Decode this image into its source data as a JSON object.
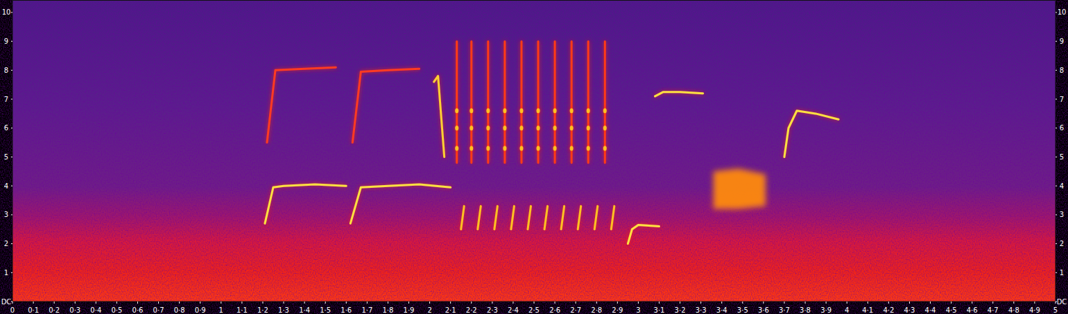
{
  "chart_data": {
    "type": "spectrogram",
    "xlim": [
      0,
      5
    ],
    "ylim": [
      0,
      10.43
    ],
    "grid": false,
    "xticks": [
      0,
      {
        "value": 0.1,
        "label": "0·1"
      },
      {
        "value": 0.2,
        "label": "0·2"
      },
      {
        "value": 0.3,
        "label": "0·3"
      },
      {
        "value": 0.4,
        "label": "0·4"
      },
      {
        "value": 0.5,
        "label": "0·5"
      },
      {
        "value": 0.6,
        "label": "0·6"
      },
      {
        "value": 0.7,
        "label": "0·7"
      },
      {
        "value": 0.8,
        "label": "0·8"
      },
      {
        "value": 0.9,
        "label": "0·9"
      },
      1,
      {
        "value": 1.1,
        "label": "1·1"
      },
      {
        "value": 1.2,
        "label": "1·2"
      },
      {
        "value": 1.3,
        "label": "1·3"
      },
      {
        "value": 1.4,
        "label": "1·4"
      },
      {
        "value": 1.5,
        "label": "1·5"
      },
      {
        "value": 1.6,
        "label": "1·6"
      },
      {
        "value": 1.7,
        "label": "1·7"
      },
      {
        "value": 1.8,
        "label": "1·8"
      },
      {
        "value": 1.9,
        "label": "1·9"
      },
      2,
      {
        "value": 2.1,
        "label": "2·1"
      },
      {
        "value": 2.2,
        "label": "2·2"
      },
      {
        "value": 2.3,
        "label": "2·3"
      },
      {
        "value": 2.4,
        "label": "2·4"
      },
      {
        "value": 2.5,
        "label": "2·5"
      },
      {
        "value": 2.6,
        "label": "2·6"
      },
      {
        "value": 2.7,
        "label": "2·7"
      },
      {
        "value": 2.8,
        "label": "2·8"
      },
      {
        "value": 2.9,
        "label": "2·9"
      },
      3,
      {
        "value": 3.1,
        "label": "3·1"
      },
      {
        "value": 3.2,
        "label": "3·2"
      },
      {
        "value": 3.3,
        "label": "3·3"
      },
      {
        "value": 3.4,
        "label": "3·4"
      },
      {
        "value": 3.5,
        "label": "3·5"
      },
      {
        "value": 3.6,
        "label": "3·6"
      },
      {
        "value": 3.7,
        "label": "3·7"
      },
      {
        "value": 3.8,
        "label": "3·8"
      },
      {
        "value": 3.9,
        "label": "3·9"
      },
      4,
      {
        "value": 4.1,
        "label": "4·1"
      },
      {
        "value": 4.2,
        "label": "4·2"
      },
      {
        "value": 4.3,
        "label": "4·3"
      },
      {
        "value": 4.4,
        "label": "4·4"
      },
      {
        "value": 4.5,
        "label": "4·5"
      },
      {
        "value": 4.6,
        "label": "4·6"
      },
      {
        "value": 4.7,
        "label": "4·7"
      },
      {
        "value": 4.8,
        "label": "4·8"
      },
      {
        "value": 4.9,
        "label": "4·9"
      },
      5
    ],
    "yticks": [
      {
        "value": 0,
        "label": "DC"
      },
      1,
      2,
      3,
      4,
      5,
      6,
      7,
      8,
      9,
      10
    ],
    "series": [
      {
        "type": "line",
        "color": "#ffe040",
        "x": [
          1.21,
          1.25,
          1.3,
          1.45,
          1.6
        ],
        "values": [
          2.7,
          3.95,
          4.0,
          4.05,
          4.0
        ]
      },
      {
        "type": "line",
        "color": "#ff3a20",
        "x": [
          1.22,
          1.26,
          1.4,
          1.55
        ],
        "values": [
          5.5,
          8.0,
          8.05,
          8.1
        ]
      },
      {
        "type": "line",
        "color": "#ffe040",
        "x": [
          1.62,
          1.67,
          1.8,
          1.95,
          2.1
        ],
        "values": [
          2.7,
          3.95,
          4.0,
          4.05,
          3.95
        ]
      },
      {
        "type": "line",
        "color": "#ff3a20",
        "x": [
          1.63,
          1.67,
          1.8,
          1.95
        ],
        "values": [
          5.5,
          7.95,
          8.0,
          8.05
        ]
      },
      {
        "type": "line",
        "color": "#ffd030",
        "x": [
          2.02,
          2.04,
          2.07
        ],
        "values": [
          7.6,
          7.8,
          5.0
        ]
      },
      {
        "type": "line",
        "color": "#ff3a18",
        "x": [
          2.13,
          2.13,
          2.13,
          2.2,
          2.2,
          2.2,
          2.28,
          2.28,
          2.28,
          2.36,
          2.36,
          2.36,
          2.44,
          2.44,
          2.44,
          2.52,
          2.52,
          2.52,
          2.6,
          2.6,
          2.6,
          2.68,
          2.68,
          2.68,
          2.76,
          2.76,
          2.76,
          2.84,
          2.84,
          2.84
        ],
        "values": [
          4.8,
          9.0,
          null,
          4.8,
          9.0,
          null,
          4.8,
          9.0,
          null,
          4.8,
          9.0,
          null,
          4.8,
          9.0,
          null,
          4.8,
          9.0,
          null,
          4.8,
          9.0,
          null,
          4.8,
          9.0,
          null,
          4.8,
          9.0,
          null,
          4.8,
          9.0,
          null
        ]
      },
      {
        "type": "scatter",
        "color": "#ffc020",
        "marker": "circle",
        "x": [
          2.13,
          2.13,
          2.13,
          2.2,
          2.2,
          2.2,
          2.28,
          2.28,
          2.28,
          2.36,
          2.36,
          2.36,
          2.44,
          2.44,
          2.44,
          2.52,
          2.52,
          2.52,
          2.6,
          2.6,
          2.6,
          2.68,
          2.68,
          2.68,
          2.76,
          2.76,
          2.76,
          2.84,
          2.84,
          2.84
        ],
        "values": [
          5.3,
          6.0,
          6.6,
          5.3,
          6.0,
          6.6,
          5.3,
          6.0,
          6.6,
          5.3,
          6.0,
          6.6,
          5.3,
          6.0,
          6.6,
          5.3,
          6.0,
          6.6,
          5.3,
          6.0,
          6.6,
          5.3,
          6.0,
          6.6,
          5.3,
          6.0,
          6.6,
          5.3,
          6.0,
          6.6
        ]
      },
      {
        "type": "line",
        "color": "#ffc020",
        "x": [
          2.15,
          2.165,
          2.165,
          2.23,
          2.245,
          2.245,
          2.31,
          2.325,
          2.325,
          2.39,
          2.405,
          2.405,
          2.47,
          2.485,
          2.485,
          2.55,
          2.565,
          2.565,
          2.63,
          2.645,
          2.645,
          2.71,
          2.725,
          2.725,
          2.79,
          2.805,
          2.805,
          2.87,
          2.885,
          2.885
        ],
        "values": [
          2.5,
          3.3,
          null,
          2.5,
          3.3,
          null,
          2.5,
          3.3,
          null,
          2.5,
          3.3,
          null,
          2.5,
          3.3,
          null,
          2.5,
          3.3,
          null,
          2.5,
          3.3,
          null,
          2.5,
          3.3,
          null,
          2.5,
          3.3,
          null,
          2.5,
          3.3,
          null
        ]
      },
      {
        "type": "line",
        "color": "#ffe040",
        "x": [
          2.95,
          2.97,
          3.0,
          3.1
        ],
        "values": [
          2.0,
          2.5,
          2.65,
          2.6
        ]
      },
      {
        "type": "line",
        "color": "#ffe040",
        "x": [
          3.08,
          3.12,
          3.2,
          3.31
        ],
        "values": [
          7.1,
          7.25,
          7.25,
          7.2
        ]
      },
      {
        "type": "area",
        "color": "#ff8a10",
        "x": [
          3.36,
          3.48,
          3.61
        ],
        "values": [
          4.5,
          4.6,
          4.4
        ],
        "low": [
          3.2,
          3.2,
          3.3
        ]
      },
      {
        "type": "line",
        "color": "#ffe040",
        "x": [
          3.7,
          3.72,
          3.76,
          3.85,
          3.96
        ],
        "values": [
          5.0,
          6.0,
          6.6,
          6.5,
          6.3
        ]
      }
    ]
  }
}
